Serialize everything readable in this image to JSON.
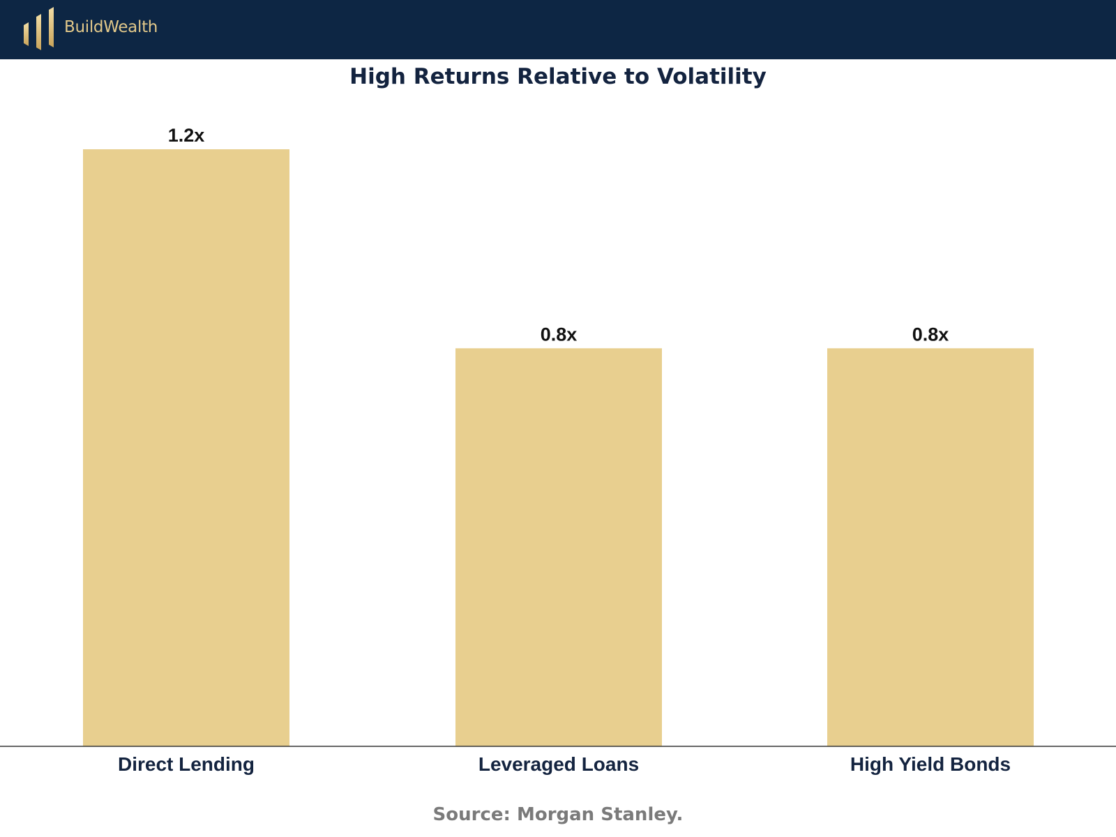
{
  "header": {
    "brand": "BuildWealth",
    "logo_icon": "bar-columns-logo-icon",
    "background": "#0d2644",
    "accent": "#e3c98a"
  },
  "chart_data": {
    "type": "bar",
    "title": "High Returns Relative to Volatility",
    "categories": [
      "Direct Lending",
      "Leveraged Loans",
      "High Yield Bonds"
    ],
    "values": [
      1.2,
      0.8,
      0.8
    ],
    "value_labels": [
      "1.2x",
      "0.8x",
      "0.8x"
    ],
    "xlabel": "",
    "ylabel": "",
    "ylim": [
      0,
      1.2
    ],
    "grid": false,
    "legend": "none",
    "bar_color": "#e8cf8f"
  },
  "footer": {
    "source": "Source: Morgan Stanley."
  }
}
